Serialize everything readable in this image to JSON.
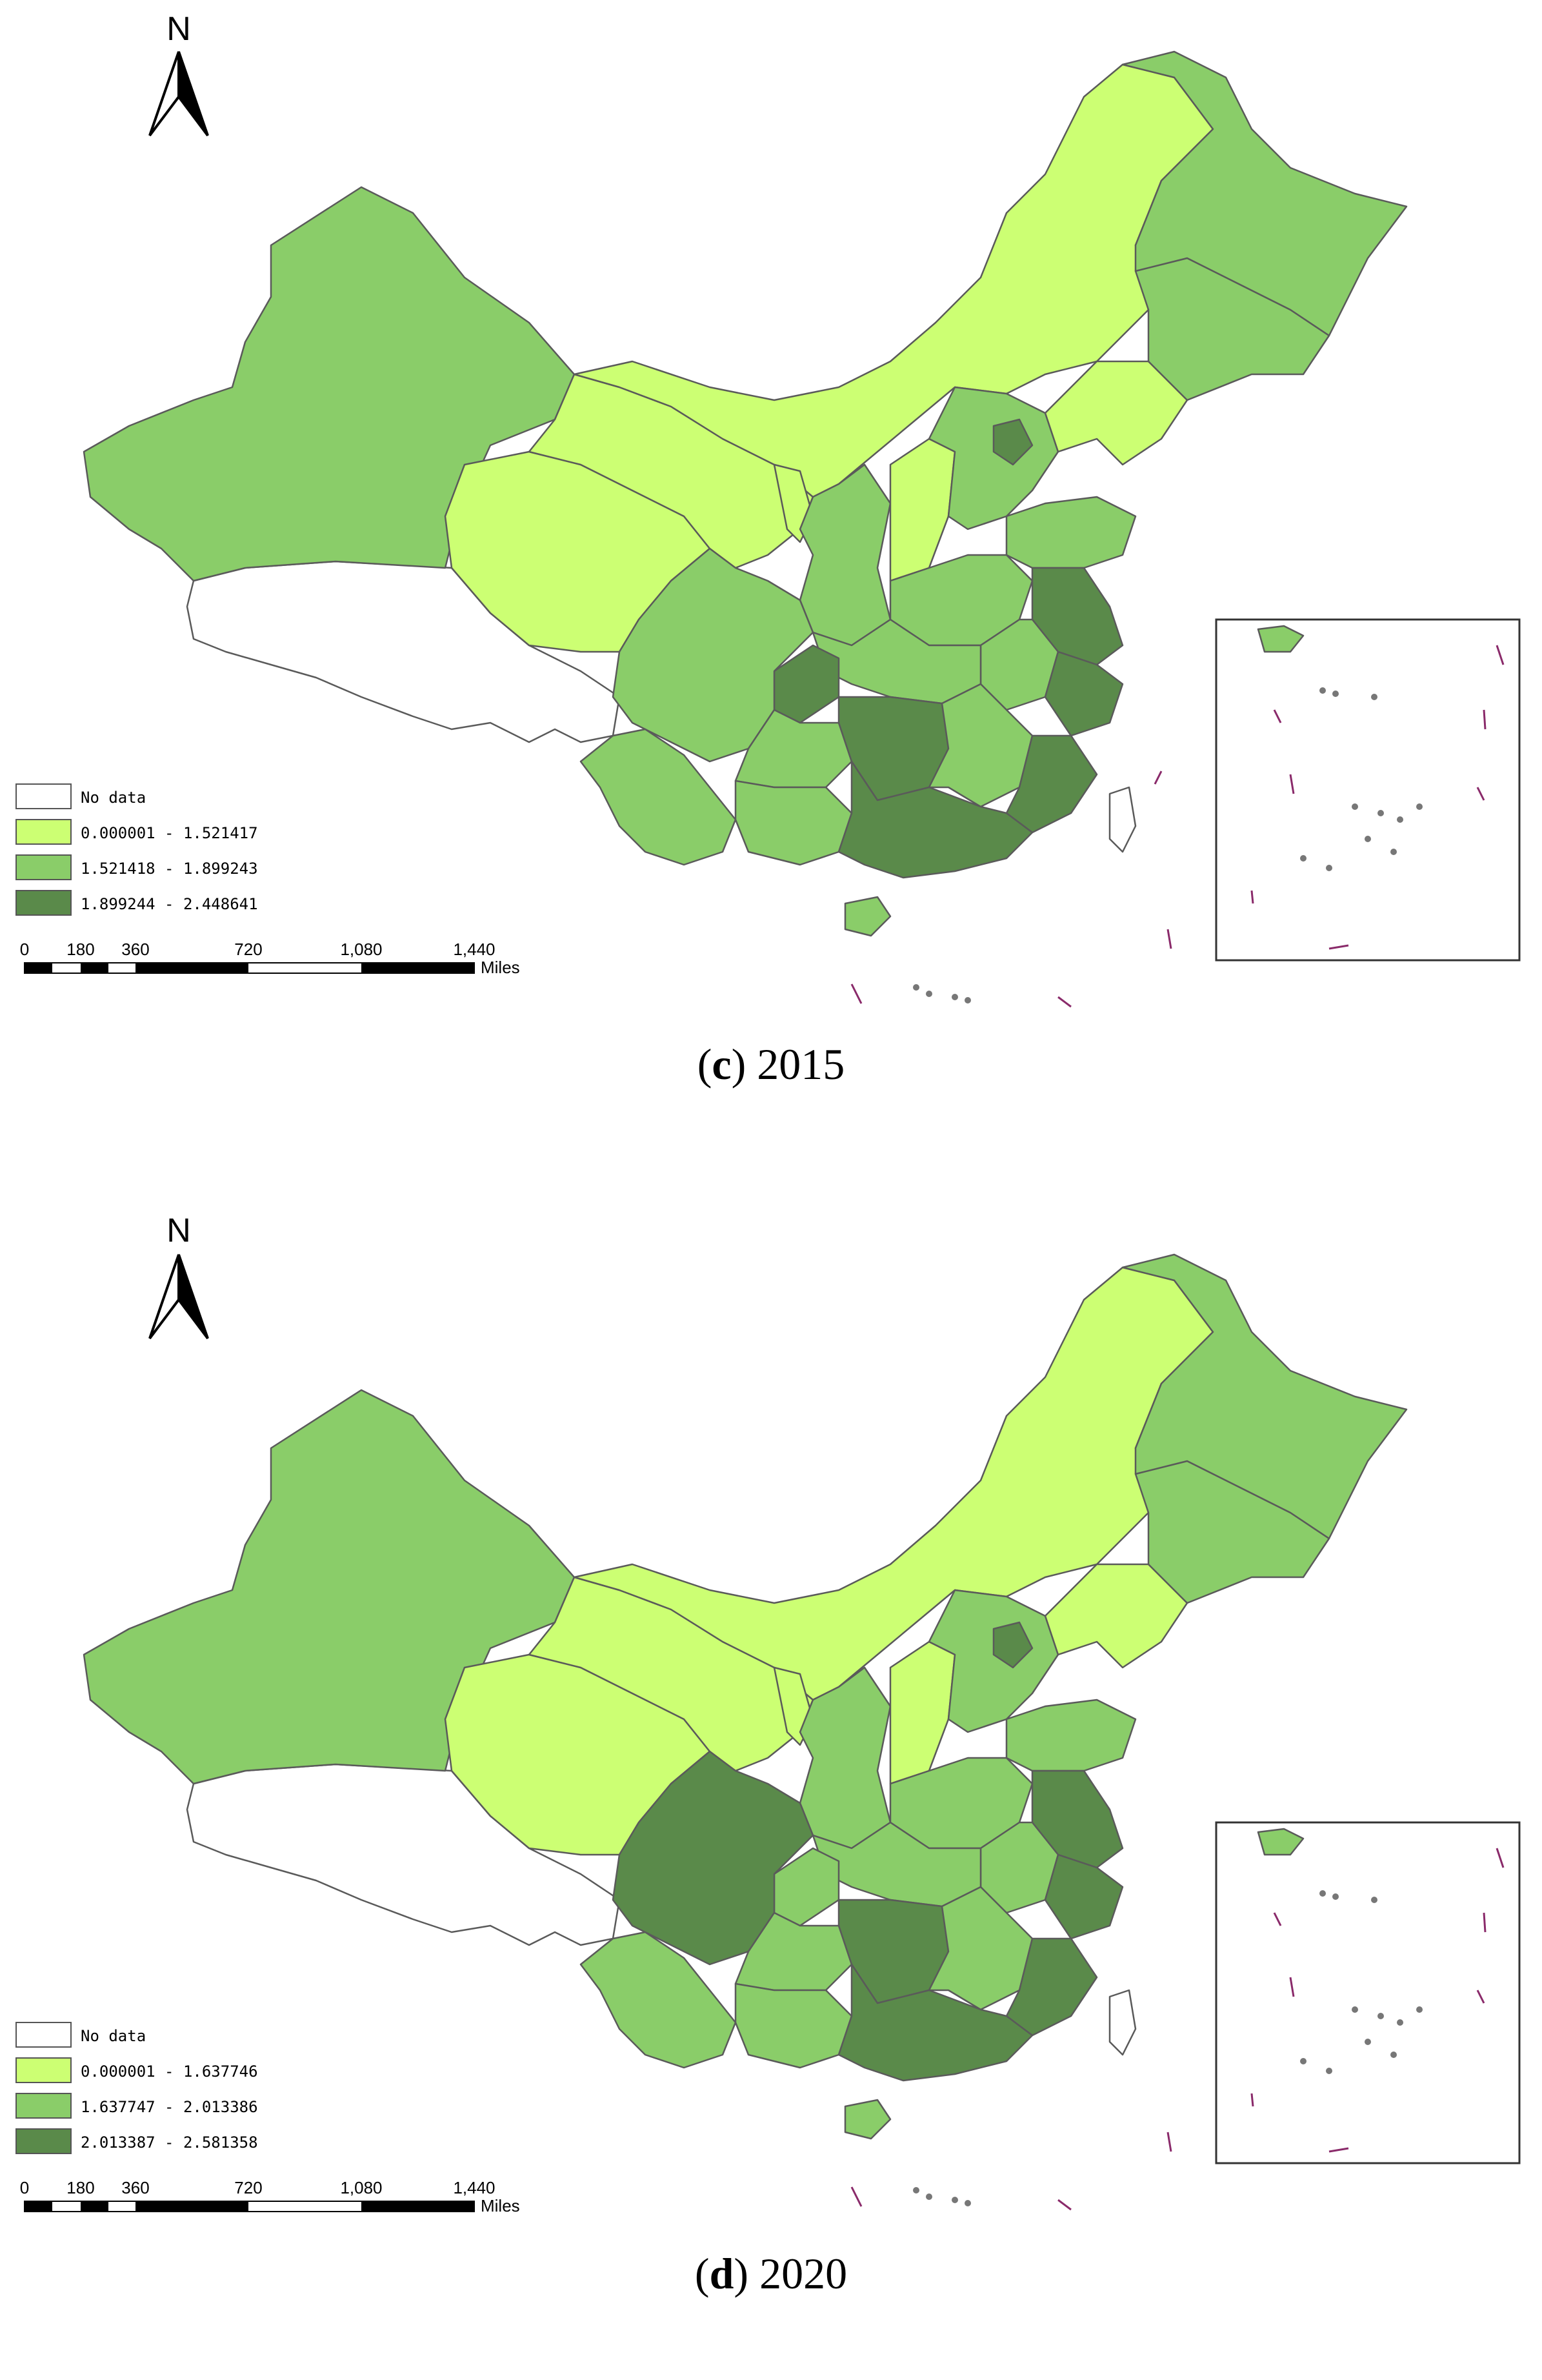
{
  "panels": [
    {
      "id": "c",
      "caption_letter": "c",
      "caption_year": "2015",
      "north_label": "N",
      "legend": [
        {
          "label": "No data",
          "color": "#ffffff"
        },
        {
          "label": "0.000001 - 1.521417",
          "color": "#ccff73"
        },
        {
          "label": "1.521418 - 1.899243",
          "color": "#8acd69"
        },
        {
          "label": "1.899244 - 2.448641",
          "color": "#5a8a4a"
        }
      ],
      "scale": {
        "ticks": [
          "0",
          "180",
          "360",
          "720",
          "1,080",
          "1,440"
        ],
        "unit": "Miles"
      }
    },
    {
      "id": "d",
      "caption_letter": "d",
      "caption_year": "2020",
      "north_label": "N",
      "legend": [
        {
          "label": "No data",
          "color": "#ffffff"
        },
        {
          "label": "0.000001 - 1.637746",
          "color": "#ccff73"
        },
        {
          "label": "1.637747 - 2.013386",
          "color": "#8acd69"
        },
        {
          "label": "2.013387 - 2.581358",
          "color": "#5a8a4a"
        }
      ],
      "scale": {
        "ticks": [
          "0",
          "180",
          "360",
          "720",
          "1,080",
          "1,440"
        ],
        "unit": "Miles"
      }
    }
  ]
}
